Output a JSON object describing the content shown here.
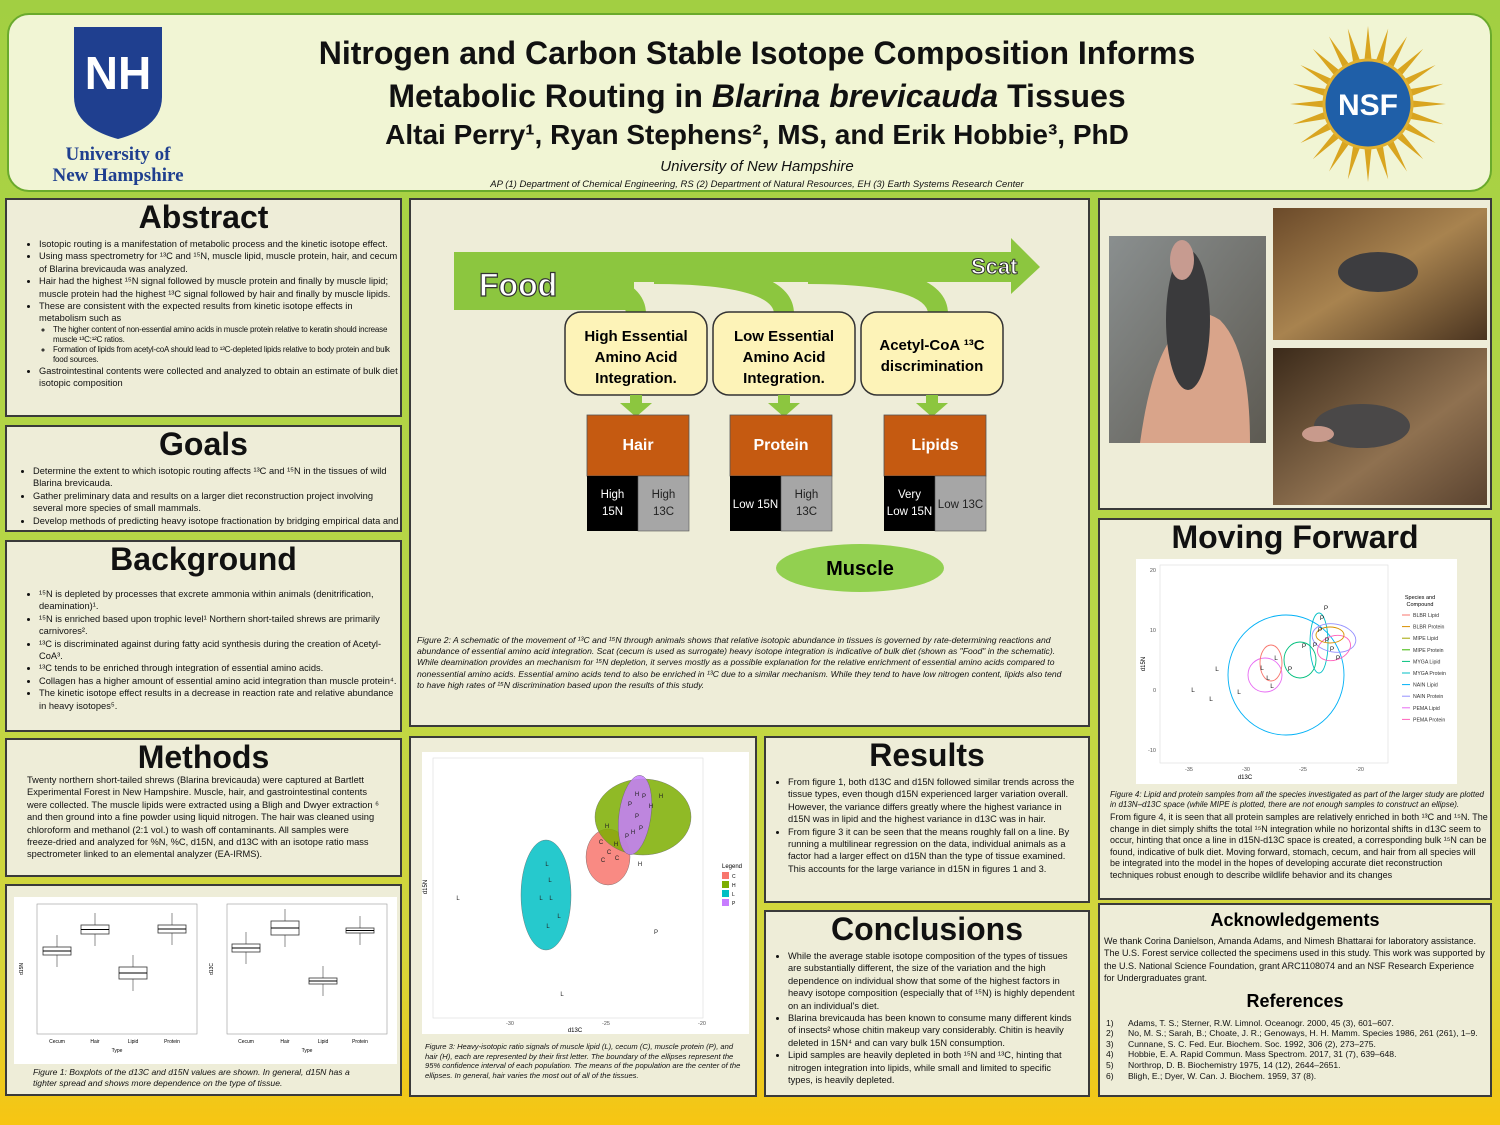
{
  "header": {
    "title_line1": "Nitrogen and Carbon Stable Isotope Composition Informs",
    "title_line2": [
      "Metabolic Routing in ",
      "Blarina brevicauda",
      " Tissues"
    ],
    "authors": "Altai Perry¹, Ryan Stephens², MS, and Erik Hobbie³, PhD",
    "institution": "University of New Hampshire",
    "departments": "AP (1) Department of Chemical Engineering, RS (2) Department of Natural Resources, EH (3) Earth Systems Research Center",
    "unh_logo": {
      "mark": "NH",
      "name": [
        "University of",
        "New Hampshire"
      ]
    },
    "nsf_logo": "NSF"
  },
  "abstract": {
    "heading": "Abstract",
    "bullets": [
      "Isotopic routing is a manifestation of metabolic process and the kinetic isotope effect.",
      "Using mass spectrometry for ¹³C and ¹⁵N, muscle lipid, muscle protein, hair, and cecum of Blarina brevicauda was analyzed.",
      "Hair had the highest ¹⁵N signal followed by muscle protein and finally by muscle lipid; muscle protein had the highest ¹³C signal followed by hair and finally by muscle lipids.",
      {
        "text": "These are consistent with the expected results from kinetic isotope effects in metabolism such as",
        "sub": [
          "The higher content of non-essential amino acids in muscle protein relative to keratin should increase muscle ¹³C:¹²C ratios.",
          "Formation of lipids from acetyl-coA should lead to ¹³C-depleted lipids relative to body protein and bulk food sources."
        ]
      },
      "Gastrointestinal contents were collected and analyzed to obtain an estimate of bulk diet isotopic composition"
    ]
  },
  "goals": {
    "heading": "Goals",
    "bullets": [
      "Determine the extent to which isotopic routing affects ¹³C and ¹⁵N in the tissues of wild Blarina brevicauda.",
      "Gather preliminary data and results on a larger diet reconstruction project involving several more species of small mammals.",
      "Develop methods of predicting heavy isotope fractionation by bridging empirical data and theoretical biochemical concepts."
    ]
  },
  "background": {
    "heading": "Background",
    "bullets": [
      "¹⁵N is depleted by processes that excrete ammonia within animals (denitrification, deamination)¹.",
      "¹⁵N is enriched based upon trophic level¹ Northern short-tailed shrews are primarily carnivores².",
      "¹³C is discriminated against during fatty acid synthesis during the creation of Acetyl-CoA³.",
      "¹³C tends to be enriched through integration of essential amino acids.",
      "Collagen has a higher amount of essential amino acid integration than muscle protein⁴.",
      "The kinetic isotope effect results in a decrease in reaction rate and relative abundance in heavy isotopes⁵."
    ]
  },
  "methods": {
    "heading": "Methods",
    "text": "Twenty northern short-tailed shrews (Blarina brevicauda) were captured at Bartlett Experimental Forest in New Hampshire. Muscle, hair, and gastrointestinal contents were collected. The muscle lipids were extracted using a Bligh and Dwyer extraction ⁶ and then ground into a fine powder using liquid nitrogen. The hair was cleaned using chloroform and methanol (2:1 vol.) to wash off contaminants. All samples were freeze-dried and analyzed for %N, %C, d15N, and d13C with an isotope ratio mass spectrometer linked to an elemental analyzer (EA-IRMS)."
  },
  "figure1": {
    "categories": [
      "Cecum",
      "Hair",
      "Lipid",
      "Protein"
    ],
    "x_label": "Type",
    "y_labels": [
      "d15N",
      "d13C"
    ],
    "caption": "Figure 1: Boxplots of the d13C and d15N values are shown. In general, d15N has a tighter spread and shows more dependence on the type of tissue."
  },
  "figure2": {
    "food": "Food",
    "scat": "Scat",
    "pathways": [
      [
        "High Essential",
        "Amino Acid",
        "Integration."
      ],
      [
        "Low Essential",
        "Amino Acid",
        "Integration."
      ],
      [
        "Acetyl-CoA ¹³C",
        "discrimination"
      ]
    ],
    "tissues": [
      {
        "name": "Hair",
        "left": [
          "High",
          "15N"
        ],
        "right": [
          "High",
          "13C"
        ]
      },
      {
        "name": "Protein",
        "left": [
          "Low 15N"
        ],
        "right": [
          "High",
          "13C"
        ]
      },
      {
        "name": "Lipids",
        "left": [
          "Very",
          "Low 15N"
        ],
        "right": [
          "Low 13C"
        ]
      }
    ],
    "muscle": "Muscle",
    "caption": "Figure 2: A schematic of the movement of ¹³C and ¹⁵N through animals shows that relative isotopic abundance in tissues is governed by rate-determining reactions and abundance of essential amino acid integration. Scat (cecum is used as surrogate) heavy isotope integration is indicative of bulk diet (shown as \"Food\" in the schematic). While deamination provides an mechanism for ¹⁵N depletion, it serves mostly as a possible explanation for the relative enrichment of essential amino acids compared to nonessential amino acids. Essential amino acids tend to also be enriched in ¹³C due to a similar mechanism. While they tend to have low nitrogen content, lipids also tend to have high rates of ¹⁵N discrimination based upon the results of this study."
  },
  "figure3": {
    "x_label": "d13C",
    "y_label": "d15N",
    "x_ticks": [
      "-30",
      "-25",
      "-20"
    ],
    "legend_title": "Legend",
    "legend": [
      {
        "label": "C",
        "color": "#f8766d"
      },
      {
        "label": "H",
        "color": "#7cae00"
      },
      {
        "label": "L",
        "color": "#00bfc4"
      },
      {
        "label": "P",
        "color": "#c77cff"
      }
    ],
    "caption": "Figure 3: Heavy-isotopic ratio signals of muscle lipid (L), cecum (C), muscle protein (P), and hair (H), each are represented by their first letter. The boundary of the ellipses represent the 95% confidence interval of each population. The means of the population are the center of the ellipses. In general, hair varies the most out of all of the tissues."
  },
  "results": {
    "heading": "Results",
    "bullets": [
      "From figure 1, both d13C and d15N followed similar trends across the tissue types, even though d15N experienced larger variation overall. However, the variance differs greatly where the highest variance in d15N was in lipid and the highest variance in d13C was in hair.",
      "From figure 3 it can be seen that the means roughly fall on a line. By running a multilinear regression on the data, individual animals as a factor had a larger effect on d15N than the type of tissue examined. This accounts for the large variance in d15N in figures 1 and 3."
    ]
  },
  "conclusions": {
    "heading": "Conclusions",
    "bullets": [
      "While the average stable isotope composition of the types of tissues are substantially different, the size of the variation and the high dependence on individual show that some of the highest factors in heavy isotope composition (especially that of ¹⁵N) is highly dependent on an individual's diet.",
      "Blarina brevicauda has been known to consume many different kinds of insects² whose chitin makeup vary considerably. Chitin is heavily deleted in 15N⁴ and can vary bulk 15N consumption.",
      "Lipid samples are heavily depleted in both ¹⁵N and ¹³C, hinting that nitrogen integration into lipids, while small and limited to specific types, is heavily depleted."
    ]
  },
  "moving_forward": {
    "heading": "Moving Forward",
    "figure4": {
      "x_label": "d13C",
      "y_label": "d15N",
      "x_ticks": [
        "-35",
        "-30",
        "-25",
        "-20"
      ],
      "y_ticks": [
        "20",
        "10",
        "0",
        "-10"
      ],
      "point_labels": [
        "L",
        "P"
      ],
      "legend_title": [
        "Species and",
        "Compound"
      ],
      "legend": [
        {
          "label": "BLBR Lipid",
          "color": "#f8766d"
        },
        {
          "label": "BLBR Protein",
          "color": "#d89000"
        },
        {
          "label": "MIPE Lipid",
          "color": "#a3a500"
        },
        {
          "label": "MIPE Protein",
          "color": "#39b600"
        },
        {
          "label": "MYGA Lipid",
          "color": "#00bf7d"
        },
        {
          "label": "MYGA Protein",
          "color": "#00bfc4"
        },
        {
          "label": "NAIN Lipid",
          "color": "#00b0f6"
        },
        {
          "label": "NAIN Protein",
          "color": "#9590ff"
        },
        {
          "label": "PEMA Lipid",
          "color": "#e76bf3"
        },
        {
          "label": "PEMA Protein",
          "color": "#ff62bc"
        }
      ],
      "caption": "Figure 4: Lipid and protein samples from all the species investigated as part of the larger study are plotted in d13N–d13C space (while MIPE is plotted, there are not enough samples to construct an ellipse)."
    },
    "text": "From figure 4, it is seen that all protein samples are relatively enriched in both ¹³C and ¹⁵N. The change in diet simply shifts the total ¹⁵N integration while no horizontal shifts in d13C seem to occur, hinting that once a line in d15N-d13C space is created, a corresponding bulk ¹⁵N can be found, indicative of bulk diet. Moving forward, stomach, cecum, and hair from all species will be integrated into the model in the hopes of developing accurate diet reconstruction techniques robust enough to describe wildlife behavior and its changes"
  },
  "acknowledgements": {
    "heading": "Acknowledgements",
    "text": "We thank Corina Danielson, Amanda Adams, and Nimesh Bhattarai for laboratory assistance. The U.S. Forest service collected the specimens used in this study. This work was supported by the U.S. National Science Foundation, grant ARC1108074 and an NSF Research Experience for Undergraduates grant."
  },
  "references": {
    "heading": "References",
    "items": [
      {
        "n": "1)",
        "text": "Adams, T. S.; Sterner, R.W. Limnol. Oceanogr. 2000, 45 (3), 601–607."
      },
      {
        "n": "2)",
        "text": "No, M. S.; Sarah, B.; Choate, J. R.; Genoways, H. H. Mamm. Species 1986, 261 (261), 1–9."
      },
      {
        "n": "3)",
        "text": "Cunnane, S. C. Fed. Eur. Biochem. Soc. 1992, 306 (2), 273–275."
      },
      {
        "n": "4)",
        "text": "Hobbie, E. A. Rapid Commun. Mass Spectrom. 2017, 31 (7), 639–648."
      },
      {
        "n": "5)",
        "text": "Northrop, D. B. Biochemistry 1975, 14 (12), 2644–2651."
      },
      {
        "n": "6)",
        "text": "Bligh, E.; Dyer, W. Can. J. Biochem. 1959, 37 (8)."
      }
    ]
  }
}
